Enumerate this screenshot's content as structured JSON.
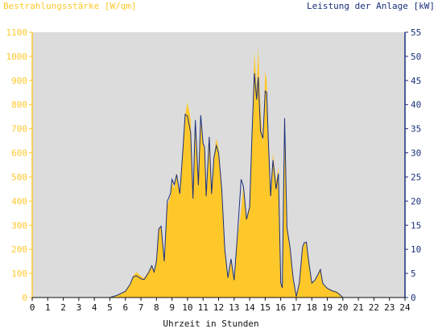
{
  "chart_data": {
    "type": "area",
    "title_left": "Bestrahlungsstärke [W/qm]",
    "title_right": "Leistung der Anlage [kW]",
    "xlabel": "Uhrzeit in Stunden",
    "x_ticks": [
      "0",
      "1",
      "2",
      "3",
      "4",
      "5",
      "6",
      "7",
      "8",
      "9",
      "10",
      "11",
      "12",
      "13",
      "14",
      "15",
      "16",
      "17",
      "18",
      "19",
      "20",
      "21",
      "22",
      "23",
      "24"
    ],
    "y_left_ticks": [
      "0",
      "100",
      "200",
      "300",
      "400",
      "500",
      "600",
      "700",
      "800",
      "900",
      "1000",
      "1100"
    ],
    "y_right_ticks": [
      "0",
      "5",
      "10",
      "15",
      "20",
      "25",
      "30",
      "35",
      "40",
      "45",
      "50",
      "55"
    ],
    "xlim": [
      0,
      24
    ],
    "ylim_left": [
      0,
      1100
    ],
    "ylim_right": [
      0,
      55
    ],
    "grid": false,
    "colors": {
      "irradiance": "#ffc82a",
      "power": "#1a2f7a",
      "plot_bg": "#dcdcdc",
      "left_axis": "#ffc82a",
      "right_axis": "#1a2f7a"
    },
    "series": [
      {
        "name": "Bestrahlungsstärke [W/qm]",
        "axis": "left",
        "x": [
          0,
          5,
          5.2,
          5.5,
          6,
          6.3,
          6.5,
          6.7,
          7,
          7.2,
          7.5,
          7.7,
          7.85,
          8,
          8.15,
          8.3,
          8.5,
          8.7,
          8.9,
          9,
          9.15,
          9.3,
          9.5,
          9.7,
          9.85,
          10,
          10.2,
          10.35,
          10.5,
          10.7,
          10.85,
          11,
          11.1,
          11.2,
          11.4,
          11.55,
          11.7,
          11.85,
          12,
          12.2,
          12.4,
          12.6,
          12.8,
          13,
          13.2,
          13.45,
          13.6,
          13.8,
          14,
          14.15,
          14.3,
          14.45,
          14.55,
          14.7,
          14.85,
          15,
          15.1,
          15.2,
          15.35,
          15.5,
          15.7,
          15.85,
          16,
          16.1,
          16.25,
          16.4,
          16.6,
          16.8,
          17,
          17.2,
          17.4,
          17.5,
          17.65,
          17.8,
          18,
          18.2,
          18.4,
          18.55,
          18.7,
          18.85,
          19,
          19.3,
          19.6,
          19.8,
          20,
          20.15,
          21,
          24
        ],
        "y": [
          0,
          0,
          3,
          8,
          25,
          55,
          90,
          105,
          90,
          80,
          110,
          130,
          110,
          160,
          280,
          300,
          150,
          380,
          420,
          480,
          450,
          520,
          430,
          630,
          760,
          810,
          740,
          400,
          700,
          460,
          730,
          640,
          610,
          410,
          660,
          430,
          580,
          660,
          620,
          450,
          200,
          80,
          160,
          70,
          240,
          360,
          470,
          330,
          380,
          680,
          1020,
          860,
          1040,
          780,
          640,
          940,
          900,
          670,
          400,
          600,
          480,
          540,
          60,
          40,
          680,
          300,
          200,
          80,
          5,
          60,
          200,
          220,
          230,
          150,
          60,
          70,
          100,
          120,
          60,
          50,
          40,
          30,
          25,
          15,
          0,
          0,
          0,
          0
        ]
      },
      {
        "name": "Leistung der Anlage [kW]",
        "axis": "right",
        "x": [
          0,
          5,
          5.2,
          5.5,
          6,
          6.3,
          6.5,
          6.7,
          7,
          7.2,
          7.5,
          7.7,
          7.85,
          8,
          8.15,
          8.3,
          8.5,
          8.7,
          8.9,
          9,
          9.15,
          9.3,
          9.5,
          9.7,
          9.85,
          10,
          10.2,
          10.35,
          10.5,
          10.7,
          10.85,
          11,
          11.1,
          11.2,
          11.4,
          11.55,
          11.7,
          11.85,
          12,
          12.2,
          12.4,
          12.6,
          12.8,
          13,
          13.2,
          13.45,
          13.6,
          13.8,
          14,
          14.15,
          14.3,
          14.45,
          14.55,
          14.7,
          14.85,
          15,
          15.1,
          15.2,
          15.35,
          15.5,
          15.7,
          15.85,
          16,
          16.1,
          16.25,
          16.4,
          16.6,
          16.8,
          17,
          17.2,
          17.4,
          17.5,
          17.65,
          17.8,
          18,
          18.2,
          18.4,
          18.55,
          18.7,
          18.85,
          19,
          19.3,
          19.6,
          19.8,
          20,
          20.15,
          21,
          24
        ],
        "y": [
          0,
          0,
          0.2,
          0.5,
          1.3,
          2.7,
          4.3,
          4.5,
          3.9,
          3.7,
          5.2,
          6.6,
          5.3,
          7.5,
          14.2,
          14.8,
          7.5,
          20,
          21.5,
          24.5,
          23.4,
          25.5,
          21.5,
          30.4,
          38,
          37.6,
          34.2,
          20.5,
          36.8,
          23.3,
          37.8,
          32,
          31.1,
          21,
          33.3,
          21.5,
          29,
          31.5,
          30,
          22.5,
          10,
          4.1,
          8,
          3.6,
          12.2,
          24.5,
          23,
          16.2,
          18.8,
          33.8,
          46.5,
          41,
          45.7,
          34.5,
          33,
          42.8,
          42.5,
          32.9,
          21,
          28.5,
          22.5,
          25.7,
          3,
          2,
          37.2,
          14.5,
          10.4,
          4,
          0.2,
          3,
          10.4,
          11.3,
          11.5,
          7.5,
          3,
          3.6,
          4.8,
          5.8,
          3,
          2.4,
          1.9,
          1.4,
          1.1,
          0.6,
          0,
          0,
          0,
          0
        ]
      }
    ]
  }
}
